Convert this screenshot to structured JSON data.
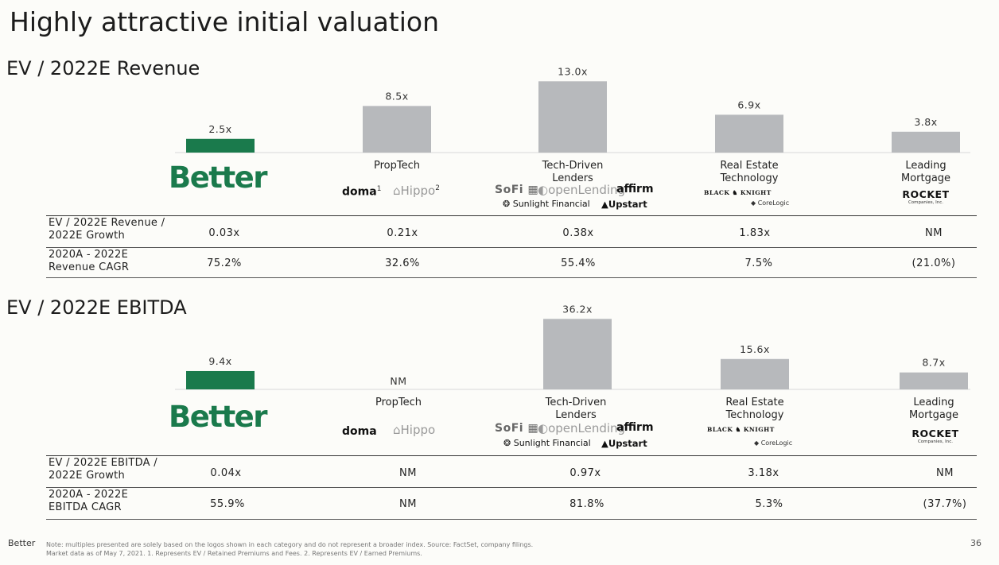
{
  "page_title": "Highly attractive initial valuation",
  "colors": {
    "accent": "#1a7a4c",
    "bar_gray": "#b7b9bc"
  },
  "company_logo": "Better",
  "chart_data": [
    {
      "type": "bar",
      "title": "EV / 2022E Revenue",
      "categories": [
        "Better",
        "PropTech",
        "Tech-Driven Lenders",
        "Real Estate Technology",
        "Leading Mortgage"
      ],
      "values": [
        2.5,
        8.5,
        13.0,
        6.9,
        3.8
      ],
      "data_labels": [
        "2.5x",
        "8.5x",
        "13.0x",
        "6.9x",
        "3.8x"
      ],
      "highlight_color": "#1a7a4c",
      "bar_color": "#b7b9bc",
      "grid": false
    },
    {
      "type": "bar",
      "title": "EV / 2022E EBITDA",
      "categories": [
        "Better",
        "PropTech",
        "Tech-Driven Lenders",
        "Real Estate Technology",
        "Leading Mortgage"
      ],
      "values": [
        9.4,
        null,
        36.2,
        15.6,
        8.7
      ],
      "data_labels": [
        "9.4x",
        "NM",
        "36.2x",
        "15.6x",
        "8.7x"
      ],
      "highlight_color": "#1a7a4c",
      "bar_color": "#b7b9bc",
      "grid": false
    }
  ],
  "categories": {
    "proptech": {
      "line1": "PropTech"
    },
    "tech_lenders": {
      "line1": "Tech-Driven",
      "line2": "Lenders"
    },
    "real_estate": {
      "line1": "Real Estate",
      "line2": "Technology"
    },
    "mortgage": {
      "line1": "Leading",
      "line2": "Mortgage"
    }
  },
  "logos": {
    "doma": "doma",
    "doma_note": "1",
    "hippo": "Hippo",
    "hippo_note": "2",
    "sofi": "SoFi",
    "openlending": "openLending",
    "affirm": "affirm",
    "sunlight": "Sunlight Financial",
    "upstart": "Upstart",
    "black_knight_1": "BLACK",
    "black_knight_2": "KNIGHT",
    "corelogic": "CoreLogic",
    "rocket": "ROCKET",
    "rocket_sub": "Companies, Inc."
  },
  "revenue_table": {
    "row1_label_1": "EV / 2022E Revenue /",
    "row1_label_2": "2022E Growth",
    "row1": [
      "0.03x",
      "0.21x",
      "0.38x",
      "1.83x",
      "NM"
    ],
    "row2_label_1": "2020A - 2022E",
    "row2_label_2": "Revenue CAGR",
    "row2": [
      "75.2%",
      "32.6%",
      "55.4%",
      "7.5%",
      "(21.0%)"
    ]
  },
  "ebitda_table": {
    "row1_label_1": "EV / 2022E EBITDA /",
    "row1_label_2": "2022E Growth",
    "row1": [
      "0.04x",
      "NM",
      "0.97x",
      "3.18x",
      "NM"
    ],
    "row2_label_1": "2020A - 2022E",
    "row2_label_2": "EBITDA CAGR",
    "row2": [
      "55.9%",
      "NM",
      "81.8%",
      "5.3%",
      "(37.7%)"
    ]
  },
  "footer": {
    "brand": "Better",
    "note_line1": "Note: multiples presented are solely based on the logos shown in each category and do not represent a broader index. Source: FactSet, company filings.",
    "note_line2": "Market data as of May 7, 2021. 1. Represents EV / Retained Premiums and Fees. 2. Represents EV / Earned Premiums.",
    "page_number": "36"
  }
}
